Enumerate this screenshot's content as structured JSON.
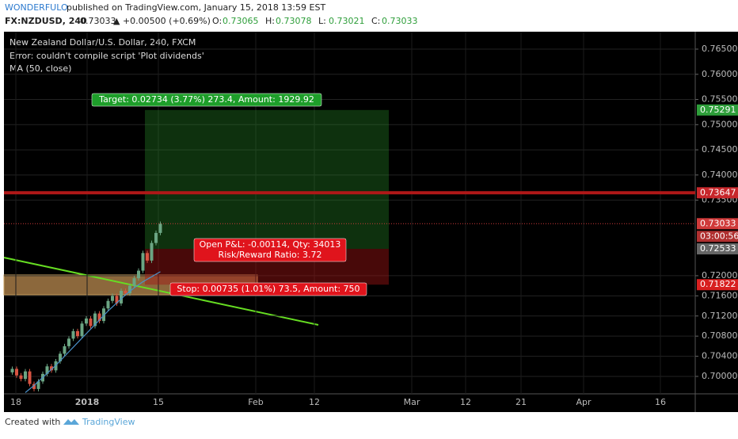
{
  "header": {
    "author": "WONDERFULO",
    "published": "published on TradingView.com, January 15, 2018 13:59 EST",
    "symbol": "FX:NZDUSD, 240",
    "last": "0.73033",
    "change": "▲ +0.00500 (+0.69%)",
    "ohlc": [
      {
        "k": "O:",
        "v": "0.73065"
      },
      {
        "k": "H:",
        "v": "0.73078"
      },
      {
        "k": "L:",
        "v": "0.73021"
      },
      {
        "k": "C:",
        "v": "0.73033"
      }
    ]
  },
  "legend": [
    "New Zealand Dollar/U.S. Dollar, 240, FXCM",
    "Error: couldn't compile script 'Plot dividends'",
    "MA (50, close)"
  ],
  "chart_data": {
    "type": "candlestick",
    "ylim": [
      0.69654,
      0.76846
    ],
    "yticks": [
      {
        "value": 0.765,
        "label": "0.76500"
      },
      {
        "value": 0.76,
        "label": "0.76000"
      },
      {
        "value": 0.755,
        "label": "0.75500"
      },
      {
        "value": 0.75,
        "label": "0.75000"
      },
      {
        "value": 0.745,
        "label": "0.74500"
      },
      {
        "value": 0.74,
        "label": "0.74000"
      },
      {
        "value": 0.735,
        "label": "0.73500"
      },
      {
        "value": 0.72,
        "label": "0.72000"
      },
      {
        "value": 0.716,
        "label": "0.71600"
      },
      {
        "value": 0.712,
        "label": "0.71200"
      },
      {
        "value": 0.708,
        "label": "0.70800"
      },
      {
        "value": 0.704,
        "label": "0.70400"
      },
      {
        "value": 0.7,
        "label": "0.70000"
      }
    ],
    "time_labels": [
      "18",
      "2018",
      "15",
      "Feb",
      "12",
      "Mar",
      "12",
      "21",
      "Apr",
      "16"
    ],
    "closes": [
      0.7008,
      0.7015,
      0.7002,
      0.6995,
      0.701,
      0.6985,
      0.6975,
      0.699,
      0.7005,
      0.702,
      0.7012,
      0.703,
      0.7045,
      0.706,
      0.7075,
      0.709,
      0.708,
      0.7105,
      0.7115,
      0.71,
      0.7125,
      0.711,
      0.7135,
      0.715,
      0.716,
      0.7145,
      0.717,
      0.7165,
      0.718,
      0.7195,
      0.721,
      0.7245,
      0.723,
      0.7265,
      0.7285,
      0.7303
    ],
    "ma": [
      null,
      null,
      null,
      null,
      0.6968,
      0.6975,
      0.6982,
      0.699,
      0.6998,
      0.7006,
      0.7014,
      0.7022,
      0.7031,
      0.704,
      0.7049,
      0.7058,
      0.7067,
      0.7076,
      0.7085,
      0.7094,
      0.7103,
      0.7112,
      0.7121,
      0.713,
      0.7138,
      0.7146,
      0.7154,
      0.7162,
      0.7169,
      0.7176,
      0.7182,
      0.7188,
      0.7193,
      0.7198,
      0.7203,
      0.7208
    ],
    "up_color": "#6ba583",
    "down_color": "#d75442",
    "ma_color": "#4a90c8",
    "tags": [
      {
        "value": 0.75291,
        "label": "0.75291",
        "color": "#2e9e3a"
      },
      {
        "value": 0.73647,
        "label": "0.73647",
        "color": "#c8272b"
      },
      {
        "value": 0.73033,
        "label": "0.73033",
        "color": "#d03a3a"
      },
      {
        "value": 0.72533,
        "label": "0.72533",
        "color": "#666666"
      },
      {
        "value": 0.71822,
        "label": "0.71822",
        "color": "#d82020"
      }
    ],
    "countdown": "03:00:56",
    "target_label": "Target: 0.02734 (3.77%) 273.4, Amount: 1929.92",
    "pnl_label": [
      "Open P&L: -0.00114, Qty: 34013",
      "Risk/Reward Ratio: 3.72"
    ],
    "stop_label": "Stop: 0.00735 (1.01%) 73.5, Amount: 750"
  },
  "footer": {
    "created": "Created with",
    "brand": "TradingView"
  }
}
